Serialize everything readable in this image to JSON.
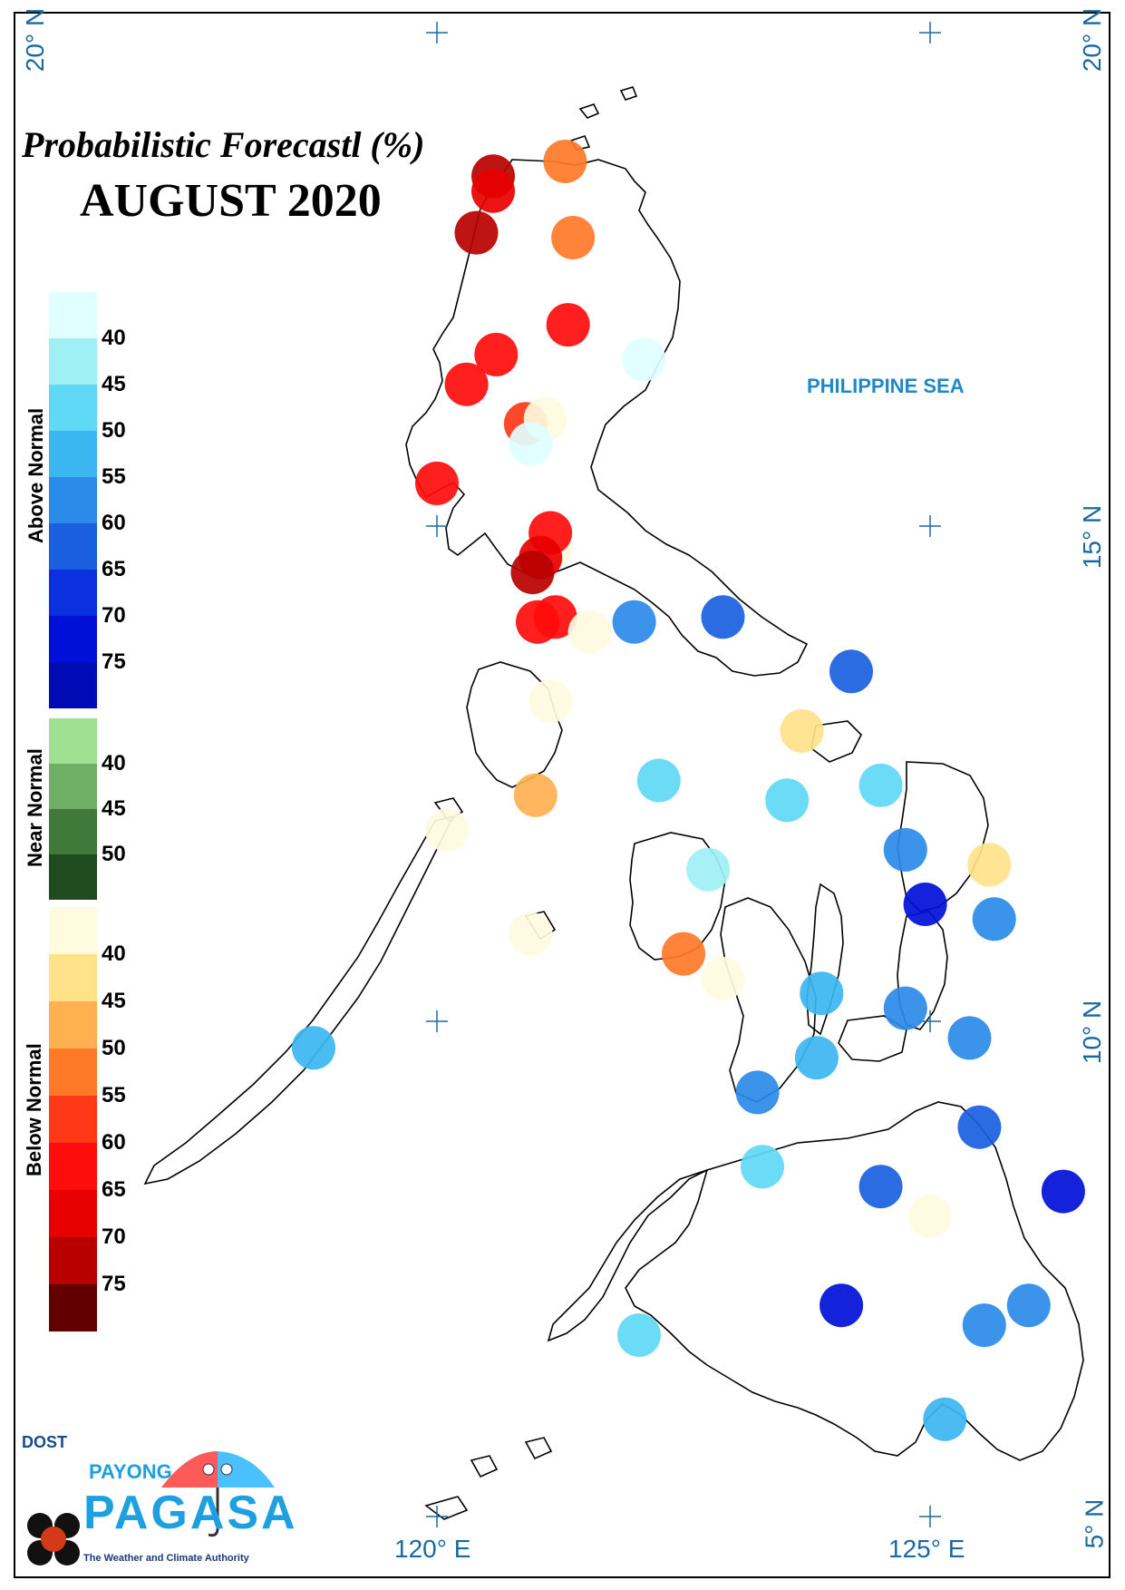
{
  "title": "Probabilistic Forecastl (%)",
  "subtitle": "AUGUST 2020",
  "sea_label": "PHILIPPINE SEA",
  "lat_labels": [
    "20° N",
    "20° N",
    "15° N",
    "10° N",
    "5° N"
  ],
  "lon_labels": [
    "120° E",
    "125° E"
  ],
  "legend": {
    "above": {
      "label": "Above Normal",
      "ticks": [
        "40",
        "45",
        "50",
        "55",
        "60",
        "65",
        "70",
        "75"
      ],
      "colors": [
        "#e0ffff",
        "#9ff0f5",
        "#5fd9f5",
        "#3bb6f0",
        "#2a8be8",
        "#1a5fe0",
        "#0a30e0",
        "#0010d8",
        "#000ab5"
      ]
    },
    "near": {
      "label": "Near Normal",
      "ticks": [
        "40",
        "45",
        "50"
      ],
      "colors": [
        "#a0e092",
        "#6fae65",
        "#3f7a3a",
        "#204a20"
      ]
    },
    "below": {
      "label": "Below Normal",
      "ticks": [
        "40",
        "45",
        "50",
        "55",
        "60",
        "65",
        "70",
        "75"
      ],
      "colors": [
        "#fffbe0",
        "#ffe28a",
        "#ffb050",
        "#ff7a28",
        "#ff3818",
        "#ff0c0c",
        "#e80000",
        "#b80000",
        "#600000"
      ]
    }
  },
  "logo": {
    "dost": "DOST",
    "payong": "PAYONG",
    "pagasa": "PAGASA",
    "tagline": "The Weather and Climate Authority"
  },
  "stations": [
    {
      "lon": 121.3,
      "lat": 18.7,
      "category": "below",
      "color": "#ff7a28"
    },
    {
      "lon": 120.57,
      "lat": 18.55,
      "category": "below",
      "color": "#b80000"
    },
    {
      "lon": 120.57,
      "lat": 18.4,
      "category": "below",
      "color": "#e80000"
    },
    {
      "lon": 120.4,
      "lat": 17.98,
      "category": "below",
      "color": "#b80000"
    },
    {
      "lon": 121.38,
      "lat": 17.93,
      "category": "below",
      "color": "#ff7a28"
    },
    {
      "lon": 121.33,
      "lat": 17.05,
      "category": "below",
      "color": "#ff0c0c"
    },
    {
      "lon": 120.6,
      "lat": 16.75,
      "category": "below",
      "color": "#ff0c0c"
    },
    {
      "lon": 122.1,
      "lat": 16.7,
      "category": "above",
      "color": "#e0ffff"
    },
    {
      "lon": 120.3,
      "lat": 16.45,
      "category": "below",
      "color": "#ff0c0c"
    },
    {
      "lon": 120.9,
      "lat": 16.05,
      "category": "below",
      "color": "#ff3818"
    },
    {
      "lon": 121.1,
      "lat": 16.1,
      "category": "below",
      "color": "#fffbe0"
    },
    {
      "lon": 120.95,
      "lat": 15.85,
      "category": "above",
      "color": "#e0ffff"
    },
    {
      "lon": 120.0,
      "lat": 15.45,
      "category": "below",
      "color": "#ff0c0c"
    },
    {
      "lon": 121.15,
      "lat": 14.8,
      "category": "below",
      "color": "#fffbe0"
    },
    {
      "lon": 121.15,
      "lat": 14.95,
      "category": "below",
      "color": "#ff0c0c"
    },
    {
      "lon": 121.05,
      "lat": 14.7,
      "category": "below",
      "color": "#e80000"
    },
    {
      "lon": 120.97,
      "lat": 14.55,
      "category": "below",
      "color": "#b80000"
    },
    {
      "lon": 121.2,
      "lat": 14.1,
      "category": "below",
      "color": "#ff0c0c"
    },
    {
      "lon": 121.02,
      "lat": 14.05,
      "category": "below",
      "color": "#ff0c0c"
    },
    {
      "lon": 121.55,
      "lat": 13.95,
      "category": "below",
      "color": "#fffbe0"
    },
    {
      "lon": 122.0,
      "lat": 14.05,
      "category": "above",
      "color": "#2a8be8"
    },
    {
      "lon": 122.9,
      "lat": 14.1,
      "category": "above",
      "color": "#1a5fe0"
    },
    {
      "lon": 124.2,
      "lat": 13.55,
      "category": "above",
      "color": "#1a5fe0"
    },
    {
      "lon": 123.7,
      "lat": 12.95,
      "category": "below",
      "color": "#ffe28a"
    },
    {
      "lon": 121.15,
      "lat": 13.25,
      "category": "below",
      "color": "#fffbe0"
    },
    {
      "lon": 122.25,
      "lat": 12.45,
      "category": "above",
      "color": "#5fd9f5"
    },
    {
      "lon": 121.0,
      "lat": 12.3,
      "category": "below",
      "color": "#ffb050"
    },
    {
      "lon": 123.55,
      "lat": 12.25,
      "category": "above",
      "color": "#5fd9f5"
    },
    {
      "lon": 124.5,
      "lat": 12.4,
      "category": "above",
      "color": "#5fd9f5"
    },
    {
      "lon": 120.1,
      "lat": 11.95,
      "category": "below",
      "color": "#fffbe0"
    },
    {
      "lon": 124.75,
      "lat": 11.75,
      "category": "above",
      "color": "#2a8be8"
    },
    {
      "lon": 125.6,
      "lat": 11.6,
      "category": "below",
      "color": "#ffe28a"
    },
    {
      "lon": 122.75,
      "lat": 11.55,
      "category": "above",
      "color": "#9ff0f5"
    },
    {
      "lon": 124.95,
      "lat": 11.2,
      "category": "above",
      "color": "#0010d8"
    },
    {
      "lon": 125.65,
      "lat": 11.05,
      "category": "above",
      "color": "#2a8be8"
    },
    {
      "lon": 120.95,
      "lat": 10.9,
      "category": "below",
      "color": "#fffbe0"
    },
    {
      "lon": 122.5,
      "lat": 10.7,
      "category": "below",
      "color": "#ff7a28"
    },
    {
      "lon": 122.9,
      "lat": 10.45,
      "category": "below",
      "color": "#fffbe0"
    },
    {
      "lon": 123.9,
      "lat": 10.3,
      "category": "above",
      "color": "#3bb6f0"
    },
    {
      "lon": 124.75,
      "lat": 10.15,
      "category": "above",
      "color": "#2a8be8"
    },
    {
      "lon": 125.4,
      "lat": 9.85,
      "category": "above",
      "color": "#2a8be8"
    },
    {
      "lon": 118.75,
      "lat": 9.75,
      "category": "above",
      "color": "#3bb6f0"
    },
    {
      "lon": 123.85,
      "lat": 9.65,
      "category": "above",
      "color": "#3bb6f0"
    },
    {
      "lon": 123.25,
      "lat": 9.3,
      "category": "above",
      "color": "#2a8be8"
    },
    {
      "lon": 125.5,
      "lat": 8.95,
      "category": "above",
      "color": "#1a5fe0"
    },
    {
      "lon": 123.3,
      "lat": 8.55,
      "category": "above",
      "color": "#5fd9f5"
    },
    {
      "lon": 124.5,
      "lat": 8.35,
      "category": "above",
      "color": "#1a5fe0"
    },
    {
      "lon": 126.35,
      "lat": 8.3,
      "category": "above",
      "color": "#0010d8"
    },
    {
      "lon": 125.0,
      "lat": 8.05,
      "category": "below",
      "color": "#fffbe0"
    },
    {
      "lon": 124.1,
      "lat": 7.15,
      "category": "above",
      "color": "#0010d8"
    },
    {
      "lon": 126.0,
      "lat": 7.15,
      "category": "above",
      "color": "#2a8be8"
    },
    {
      "lon": 125.55,
      "lat": 6.95,
      "category": "above",
      "color": "#2a8be8"
    },
    {
      "lon": 122.05,
      "lat": 6.85,
      "category": "above",
      "color": "#5fd9f5"
    },
    {
      "lon": 125.15,
      "lat": 6.0,
      "category": "above",
      "color": "#3bb6f0"
    }
  ]
}
